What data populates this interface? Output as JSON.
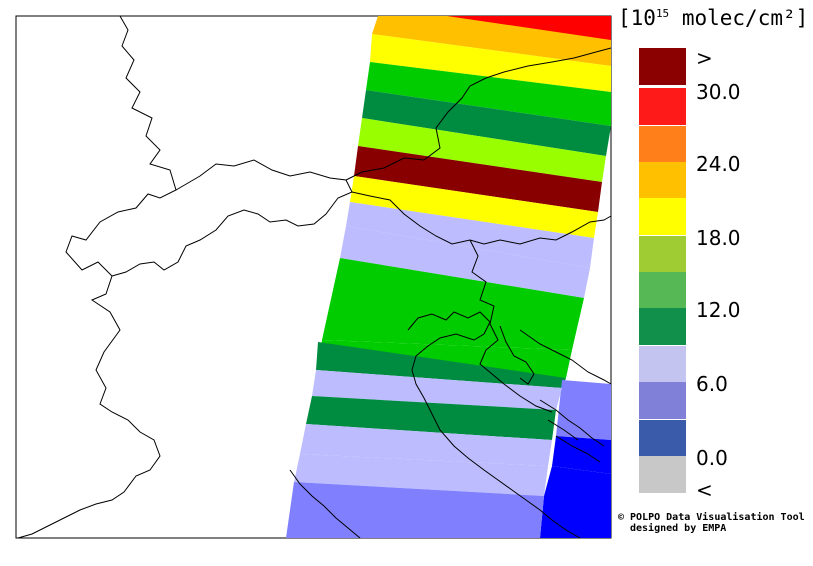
{
  "legend": {
    "title_prefix": "[10",
    "title_exponent": "15",
    "title_suffix": " molec/cm²]",
    "labels": [
      ">",
      "30.0",
      "24.0",
      "18.0",
      "12.0",
      "6.0",
      "0.0",
      "<"
    ],
    "colors": [
      "#8b0000",
      "#ff1a1a",
      "#ff7f1a",
      "#ffc000",
      "#ffff00",
      "#a0cc33",
      "#55b855",
      "#10904a",
      "#c4c4f0",
      "#8080d8",
      "#3a5aaa",
      "#c8c8c8"
    ]
  },
  "credit": {
    "line1": "© POLPO Data Visualisation Tool",
    "line2": "designed by EMPA"
  },
  "map": {
    "colors": {
      "red": "#ff0000",
      "orange": "#ffc000",
      "yellow": "#ffff00",
      "lime": "#99ff00",
      "green": "#00cc00",
      "darkgreen": "#008c40",
      "darkred": "#880000",
      "lavender": "#bcbcff",
      "periwinkle": "#8080ff",
      "blue": "#0000ff"
    }
  }
}
